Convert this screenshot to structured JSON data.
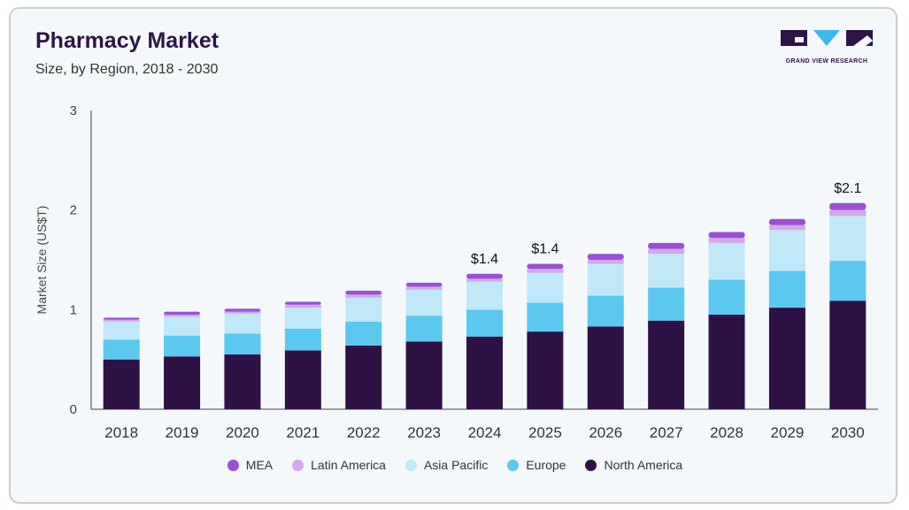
{
  "header": {
    "title": "Pharmacy Market",
    "subtitle": "Size, by Region, 2018 - 2030"
  },
  "logo": {
    "text": "GRAND VIEW RESEARCH",
    "color": "#2c1544",
    "accent": "#3bb8e8"
  },
  "chart_data": {
    "type": "bar",
    "stacked": true,
    "title": "Pharmacy Market",
    "subtitle": "Size, by Region, 2018 - 2030",
    "xlabel": "",
    "ylabel": "Market Size (US$T)",
    "ylim": [
      0,
      3
    ],
    "yticks": [
      0,
      1,
      2,
      3
    ],
    "grid": false,
    "legend_position": "bottom",
    "categories": [
      "2018",
      "2019",
      "2020",
      "2021",
      "2022",
      "2023",
      "2024",
      "2025",
      "2026",
      "2027",
      "2028",
      "2029",
      "2030"
    ],
    "series": [
      {
        "name": "North America",
        "color": "#2e1245",
        "values": [
          0.5,
          0.53,
          0.55,
          0.59,
          0.64,
          0.68,
          0.73,
          0.78,
          0.83,
          0.89,
          0.95,
          1.02,
          1.09
        ]
      },
      {
        "name": "Europe",
        "color": "#5bc8f0",
        "values": [
          0.2,
          0.21,
          0.21,
          0.22,
          0.24,
          0.26,
          0.27,
          0.29,
          0.31,
          0.33,
          0.35,
          0.37,
          0.4
        ]
      },
      {
        "name": "Asia Pacific",
        "color": "#c0e8f8",
        "values": [
          0.18,
          0.19,
          0.2,
          0.21,
          0.24,
          0.26,
          0.28,
          0.3,
          0.32,
          0.34,
          0.37,
          0.41,
          0.45
        ]
      },
      {
        "name": "Latin America",
        "color": "#d4a8ea",
        "values": [
          0.02,
          0.02,
          0.02,
          0.03,
          0.03,
          0.03,
          0.03,
          0.04,
          0.04,
          0.05,
          0.05,
          0.05,
          0.06
        ]
      },
      {
        "name": "MEA",
        "color": "#9b4fd6",
        "values": [
          0.02,
          0.03,
          0.03,
          0.03,
          0.04,
          0.04,
          0.05,
          0.05,
          0.06,
          0.06,
          0.06,
          0.06,
          0.07
        ]
      }
    ],
    "annotations": [
      {
        "category": "2024",
        "text": "$1.4"
      },
      {
        "category": "2025",
        "text": "$1.4"
      },
      {
        "category": "2030",
        "text": "$2.1"
      }
    ],
    "legend_order": [
      "MEA",
      "Latin America",
      "Asia Pacific",
      "Europe",
      "North America"
    ]
  }
}
